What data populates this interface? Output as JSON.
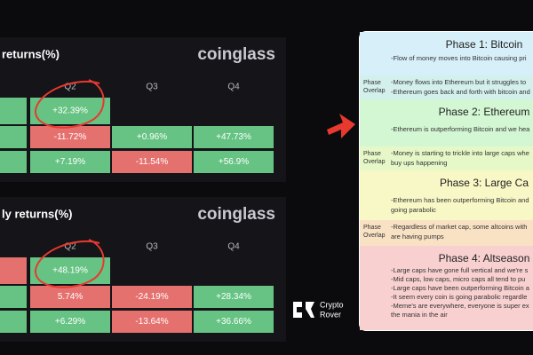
{
  "tables": [
    {
      "title": "returns(%)",
      "brand": "coinglass",
      "columns": [
        "Q2",
        "Q3",
        "Q4"
      ],
      "rows": [
        [
          {
            "text": "%",
            "tone": "up"
          },
          {
            "text": "+32.39%",
            "tone": "up"
          },
          null,
          null
        ],
        [
          {
            "text": "%",
            "tone": "up"
          },
          {
            "text": "-11.72%",
            "tone": "down"
          },
          {
            "text": "+0.96%",
            "tone": "up"
          },
          {
            "text": "+47.73%",
            "tone": "up"
          }
        ],
        [
          {
            "text": "%",
            "tone": "up"
          },
          {
            "text": "+7.19%",
            "tone": "up"
          },
          {
            "text": "-11.54%",
            "tone": "down"
          },
          {
            "text": "+56.9%",
            "tone": "up"
          }
        ]
      ]
    },
    {
      "title": "ly returns(%)",
      "brand": "coinglass",
      "columns": [
        "Q2",
        "Q3",
        "Q4"
      ],
      "rows": [
        [
          {
            "text": "%",
            "tone": "down"
          },
          {
            "text": "+48.19%",
            "tone": "up"
          },
          null,
          null
        ],
        [
          {
            "text": "%",
            "tone": "up"
          },
          {
            "text": "5.74%",
            "tone": "down"
          },
          {
            "text": "-24.19%",
            "tone": "down"
          },
          {
            "text": "+28.34%",
            "tone": "up"
          }
        ],
        [
          {
            "text": "%",
            "tone": "up"
          },
          {
            "text": "+6.29%",
            "tone": "up"
          },
          {
            "text": "-13.64%",
            "tone": "down"
          },
          {
            "text": "+36.66%",
            "tone": "up"
          }
        ]
      ]
    }
  ],
  "logo": {
    "lines": [
      "Crypto",
      "Rover"
    ]
  },
  "phases": [
    {
      "title": "Phase 1: Bitcoin",
      "color": "#d6eff9",
      "lines": [
        "-Flow of money moves into Bitcoin causing pri"
      ]
    },
    {
      "label_lines": [
        "Phase",
        "Overlap"
      ],
      "color": "#d3f0ec",
      "lines": [
        "-Money flows into Ethereum but it struggles to",
        "-Ethereum goes back and forth with bitcoin and"
      ]
    },
    {
      "title": "Phase 2: Ethereum",
      "color": "#d3f6d3",
      "lines": [
        "-Ethereum is outperforming Bitcoin and we hea"
      ]
    },
    {
      "label_lines": [
        "Phase",
        "Overlap"
      ],
      "color": "#e6f7c8",
      "lines": [
        "-Money is starting to trickle into large caps whe",
        "buy ups happening"
      ]
    },
    {
      "title": "Phase 3: Large Ca",
      "color": "#f8f8c6",
      "lines": [
        "-Ethereum has been outperforming Bitcoin and",
        "going parabolic"
      ]
    },
    {
      "label_lines": [
        "Phase",
        "Overlap"
      ],
      "color": "#f9e2c4",
      "lines": [
        "-Regardless of market cap, some altcoins with",
        "are having pumps"
      ]
    },
    {
      "title": "Phase 4: Altseason",
      "color": "#f8d0d0",
      "lines": [
        "-Large caps have gone full vertical and we're s",
        "-Mid caps, low caps, micro caps all tend to pu",
        "-Large caps have been outperforming Bitcoin a",
        "-It seem every coin is going parabolic regardle",
        "-Meme's are everywhere, everyone is super ex",
        "the mania in the air"
      ]
    }
  ]
}
